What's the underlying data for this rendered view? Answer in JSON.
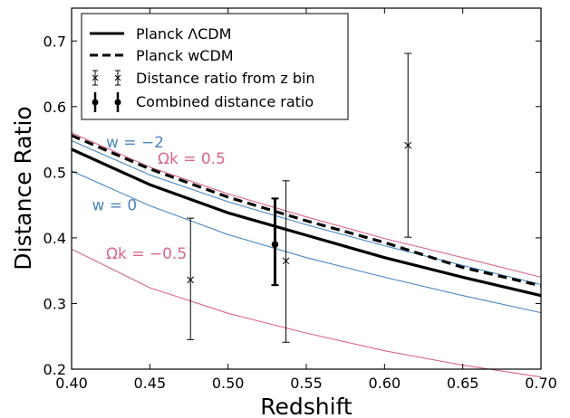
{
  "chart_data": {
    "type": "line",
    "title": "",
    "xlabel": "Redshift",
    "ylabel": "Distance Ratio",
    "xlim": [
      0.4,
      0.7
    ],
    "ylim": [
      0.2,
      0.75
    ],
    "x_ticks": [
      "0.40",
      "0.45",
      "0.50",
      "0.55",
      "0.60",
      "0.65",
      "0.70"
    ],
    "y_ticks": [
      "0.2",
      "0.3",
      "0.4",
      "0.5",
      "0.6",
      "0.7"
    ],
    "grid": false,
    "legend_position": "top-left",
    "colors": {
      "black": "#000000",
      "blue": "#4a86c0",
      "pink": "#d9668c"
    },
    "legend": [
      {
        "label": "Planck ΛCDM",
        "style": "solid"
      },
      {
        "label": "Planck wCDM",
        "style": "dashed"
      },
      {
        "label": "Distance ratio from z bin",
        "style": "errorbar-x"
      },
      {
        "label": "Combined distance ratio",
        "style": "errorbar-dot"
      }
    ],
    "series": [
      {
        "name": "Planck ΛCDM",
        "style": "solid",
        "color": "#000000",
        "x": [
          0.4,
          0.45,
          0.5,
          0.55,
          0.6,
          0.65,
          0.7
        ],
        "y": [
          0.535,
          0.481,
          0.438,
          0.404,
          0.37,
          0.34,
          0.312
        ]
      },
      {
        "name": "Planck wCDM",
        "style": "dashed",
        "color": "#000000",
        "x": [
          0.4,
          0.45,
          0.5,
          0.55,
          0.6,
          0.65,
          0.7
        ],
        "y": [
          0.556,
          0.505,
          0.462,
          0.426,
          0.393,
          0.355,
          0.327
        ]
      },
      {
        "name": "w = −2",
        "style": "thin",
        "color": "#4a86c0",
        "x": [
          0.4,
          0.45,
          0.5,
          0.55,
          0.6,
          0.65,
          0.7
        ],
        "y": [
          0.548,
          0.496,
          0.455,
          0.42,
          0.388,
          0.358,
          0.329
        ]
      },
      {
        "name": "w = 0",
        "style": "thin",
        "color": "#4a86c0",
        "x": [
          0.4,
          0.45,
          0.5,
          0.55,
          0.6,
          0.65,
          0.7
        ],
        "y": [
          0.502,
          0.449,
          0.405,
          0.37,
          0.34,
          0.312,
          0.286
        ]
      },
      {
        "name": "Ωk = 0.5",
        "style": "thin",
        "color": "#d9668c",
        "x": [
          0.4,
          0.45,
          0.5,
          0.55,
          0.6,
          0.65,
          0.7
        ],
        "y": [
          0.56,
          0.508,
          0.467,
          0.432,
          0.399,
          0.37,
          0.34
        ]
      },
      {
        "name": "Ωk = −0.5",
        "style": "thin",
        "color": "#d9668c",
        "x": [
          0.4,
          0.45,
          0.5,
          0.55,
          0.6,
          0.65,
          0.7
        ],
        "y": [
          0.383,
          0.324,
          0.285,
          0.255,
          0.228,
          0.206,
          0.188
        ]
      }
    ],
    "bin_points": [
      {
        "x": 0.476,
        "y": 0.336,
        "ylo": 0.245,
        "yhi": 0.43
      },
      {
        "x": 0.537,
        "y": 0.365,
        "ylo": 0.241,
        "yhi": 0.487
      },
      {
        "x": 0.615,
        "y": 0.541,
        "ylo": 0.401,
        "yhi": 0.681
      }
    ],
    "combined_point": {
      "x": 0.53,
      "y": 0.39,
      "ylo": 0.328,
      "yhi": 0.46
    },
    "annotations": [
      {
        "id": "w-neg2",
        "text": "w = −2",
        "color": "#4a86c0",
        "x": 0.422,
        "y": 0.538
      },
      {
        "id": "w-zero",
        "text": "w = 0",
        "color": "#4a86c0",
        "x": 0.413,
        "y": 0.442
      },
      {
        "id": "ok-pos",
        "text": "Ωk = 0.5",
        "color": "#d9668c",
        "x": 0.455,
        "y": 0.513
      },
      {
        "id": "ok-neg",
        "text": "Ωk = −0.5",
        "color": "#d9668c",
        "x": 0.422,
        "y": 0.368
      }
    ]
  }
}
